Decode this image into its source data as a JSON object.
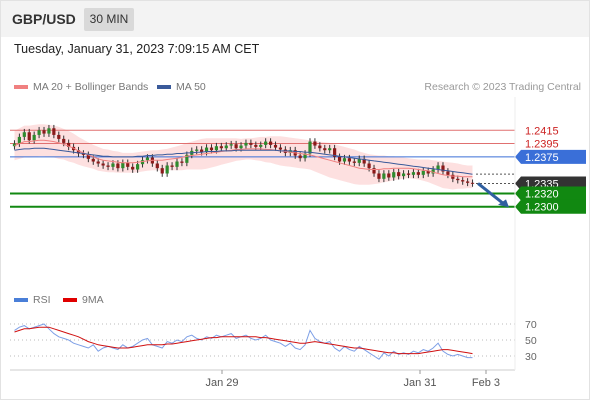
{
  "header": {
    "symbol": "GBP/USD",
    "timeframe": "30 MIN"
  },
  "timestamp": "Tuesday, January 31, 2023 7:09:15 AM CET",
  "legend": {
    "ma20": {
      "label": "MA 20 + Bollinger Bands",
      "color": "#f08080"
    },
    "ma50": {
      "label": "MA 50",
      "color": "#3a5a9a"
    }
  },
  "credit": "Research © 2023 Trading Central",
  "rsi_legend": {
    "rsi": {
      "label": "RSI",
      "color": "#4a7fd8"
    },
    "ma9": {
      "label": "9MA",
      "color": "#e00000"
    }
  },
  "colors": {
    "bull": "#2e8b2e",
    "bear": "#8b1a1a",
    "support": "#118811",
    "pivot": "#3a6fd8",
    "resistance": "#e07070",
    "last": "#333333",
    "band": "#fde0e0",
    "arrow": "#2f5f9f"
  },
  "chart_data": [
    {
      "type": "candlestick",
      "ylim": [
        1.225,
        1.2465
      ],
      "x_ticks": [
        "Jan 29",
        "Jan 31",
        "Feb 3"
      ],
      "levels": [
        {
          "value": "1.2415",
          "kind": "resistance"
        },
        {
          "value": "1.2395",
          "kind": "resistance"
        },
        {
          "value": "1.2375",
          "kind": "pivot"
        },
        {
          "value": "1.2335",
          "kind": "last"
        },
        {
          "value": "1.2320",
          "kind": "support"
        },
        {
          "value": "1.2300",
          "kind": "support"
        }
      ],
      "close": [
        1.2395,
        1.2405,
        1.2412,
        1.24,
        1.2408,
        1.2415,
        1.241,
        1.2418,
        1.2408,
        1.2402,
        1.2396,
        1.239,
        1.2385,
        1.238,
        1.2378,
        1.2372,
        1.2368,
        1.2365,
        1.2362,
        1.236,
        1.2365,
        1.2358,
        1.2366,
        1.236,
        1.2356,
        1.2364,
        1.237,
        1.2374,
        1.2365,
        1.2358,
        1.235,
        1.2362,
        1.236,
        1.2368,
        1.2366,
        1.2378,
        1.2384,
        1.2386,
        1.2382,
        1.2389,
        1.2385,
        1.2391,
        1.2388,
        1.2392,
        1.2394,
        1.2388,
        1.2392,
        1.2396,
        1.2393,
        1.239,
        1.2393,
        1.2398,
        1.2393,
        1.2389,
        1.2386,
        1.2381,
        1.2385,
        1.2377,
        1.2373,
        1.238,
        1.2398,
        1.2392,
        1.2388,
        1.2385,
        1.2388,
        1.2375,
        1.2368,
        1.2373,
        1.2368,
        1.2366,
        1.2372,
        1.2365,
        1.2358,
        1.235,
        1.2342,
        1.235,
        1.2344,
        1.2352,
        1.2346,
        1.235,
        1.2348,
        1.2352,
        1.2348,
        1.2354,
        1.235,
        1.2356,
        1.2362,
        1.2353,
        1.2348,
        1.2342,
        1.234,
        1.2338,
        1.2336,
        1.2335
      ],
      "ma20": [
        1.2392,
        1.2395,
        1.2398,
        1.2398,
        1.2399,
        1.24,
        1.24,
        1.2399,
        1.2398,
        1.2396,
        1.2394,
        1.2391,
        1.2388,
        1.2384,
        1.2381,
        1.2378,
        1.2375,
        1.2372,
        1.237,
        1.2369,
        1.2368,
        1.2367,
        1.2366,
        1.2366,
        1.2366,
        1.2367,
        1.2368,
        1.2369,
        1.237,
        1.237,
        1.237,
        1.2371,
        1.2372,
        1.2373,
        1.2374,
        1.2376,
        1.2377,
        1.2378,
        1.2379,
        1.238,
        1.2381,
        1.2382,
        1.2383,
        1.2384,
        1.2385,
        1.2386,
        1.2386,
        1.2387,
        1.2387,
        1.2387,
        1.2387,
        1.2386,
        1.2386,
        1.2385,
        1.2384,
        1.2383,
        1.2382,
        1.2381,
        1.238,
        1.2379,
        1.2378,
        1.2376,
        1.2374,
        1.2372,
        1.237,
        1.2368,
        1.2366,
        1.2364,
        1.2362,
        1.236,
        1.2358,
        1.2357,
        1.2356,
        1.2356,
        1.2356,
        1.2357,
        1.2357,
        1.2358,
        1.2358,
        1.2358,
        1.2358,
        1.2357,
        1.2356,
        1.2355,
        1.2354,
        1.2352,
        1.235,
        1.2348,
        1.2347,
        1.2346,
        1.2346,
        1.2345,
        1.2345,
        1.2345
      ],
      "ma50": [
        1.2385,
        1.2386,
        1.2387,
        1.2387,
        1.2388,
        1.2388,
        1.2388,
        1.2387,
        1.2386,
        1.2385,
        1.2384,
        1.2383,
        1.2382,
        1.2381,
        1.238,
        1.2379,
        1.2378,
        1.2377,
        1.2376,
        1.2376,
        1.2375,
        1.2375,
        1.2375,
        1.2375,
        1.2375,
        1.2376,
        1.2376,
        1.2377,
        1.2377,
        1.2378,
        1.2378,
        1.2379,
        1.2379,
        1.238,
        1.238,
        1.2381,
        1.2381,
        1.2382,
        1.2382,
        1.2383,
        1.2383,
        1.2383,
        1.2384,
        1.2384,
        1.2384,
        1.2385,
        1.2385,
        1.2385,
        1.2385,
        1.2385,
        1.2385,
        1.2385,
        1.2385,
        1.2385,
        1.2384,
        1.2384,
        1.2384,
        1.2383,
        1.2383,
        1.2382,
        1.2382,
        1.2381,
        1.238,
        1.2379,
        1.2378,
        1.2377,
        1.2376,
        1.2375,
        1.2374,
        1.2373,
        1.2372,
        1.2371,
        1.237,
        1.2369,
        1.2368,
        1.2367,
        1.2366,
        1.2365,
        1.2364,
        1.2363,
        1.2362,
        1.2361,
        1.236,
        1.2359,
        1.2358,
        1.2357,
        1.2356,
        1.2355,
        1.2354,
        1.2353,
        1.2352,
        1.2351,
        1.235,
        1.2349
      ],
      "band_width": [
        0.0022,
        0.0023,
        0.0024,
        0.0024,
        0.0024,
        0.0024,
        0.0024,
        0.0024,
        0.0024,
        0.0024,
        0.0023,
        0.0023,
        0.0022,
        0.0021,
        0.002,
        0.0019,
        0.0018,
        0.0018,
        0.0017,
        0.0017,
        0.0016,
        0.0016,
        0.0015,
        0.0015,
        0.0015,
        0.0015,
        0.0015,
        0.0015,
        0.0015,
        0.0015,
        0.0016,
        0.0016,
        0.0017,
        0.0018,
        0.0019,
        0.002,
        0.0021,
        0.0022,
        0.0023,
        0.0023,
        0.0022,
        0.0021,
        0.002,
        0.0019,
        0.0018,
        0.0017,
        0.0016,
        0.0016,
        0.0016,
        0.0017,
        0.0018,
        0.0019,
        0.002,
        0.0021,
        0.0022,
        0.0022,
        0.0022,
        0.0022,
        0.0022,
        0.0022,
        0.0022,
        0.0023,
        0.0024,
        0.0025,
        0.0026,
        0.0026,
        0.0026,
        0.0026,
        0.0026,
        0.0026,
        0.0025,
        0.0024,
        0.0023,
        0.0022,
        0.0021,
        0.002,
        0.0019,
        0.0018,
        0.0017,
        0.0016,
        0.0015,
        0.0015,
        0.0015,
        0.0016,
        0.0017,
        0.0018,
        0.0019,
        0.002,
        0.002,
        0.002,
        0.0019,
        0.0018,
        0.0017,
        0.0017
      ]
    },
    {
      "type": "line",
      "y_ticks": [
        "70",
        "50",
        "30"
      ],
      "ylim": [
        15,
        85
      ],
      "series": [
        {
          "name": "RSI",
          "values": [
            62,
            66,
            68,
            64,
            66,
            68,
            70,
            64,
            58,
            54,
            52,
            50,
            46,
            44,
            42,
            40,
            44,
            36,
            40,
            42,
            40,
            38,
            44,
            40,
            42,
            46,
            50,
            52,
            44,
            42,
            40,
            48,
            46,
            50,
            48,
            54,
            56,
            52,
            50,
            54,
            52,
            56,
            54,
            56,
            58,
            52,
            54,
            56,
            52,
            50,
            52,
            56,
            50,
            48,
            46,
            42,
            46,
            40,
            38,
            44,
            62,
            52,
            48,
            46,
            48,
            40,
            36,
            42,
            38,
            36,
            42,
            38,
            34,
            30,
            26,
            34,
            30,
            36,
            32,
            34,
            32,
            36,
            34,
            38,
            36,
            40,
            46,
            36,
            32,
            30,
            32,
            30,
            28,
            28
          ]
        },
        {
          "name": "9MA",
          "values": [
            60,
            62,
            64,
            64,
            65,
            66,
            66,
            66,
            64,
            62,
            60,
            58,
            56,
            54,
            51,
            48,
            46,
            44,
            43,
            42,
            41,
            40,
            40,
            40,
            41,
            42,
            43,
            44,
            44,
            44,
            44,
            45,
            45,
            46,
            47,
            48,
            49,
            50,
            51,
            52,
            53,
            53,
            54,
            54,
            54,
            54,
            54,
            54,
            54,
            54,
            53,
            53,
            52,
            51,
            50,
            49,
            48,
            47,
            46,
            46,
            47,
            48,
            47,
            46,
            45,
            44,
            43,
            42,
            41,
            40,
            40,
            39,
            38,
            37,
            36,
            35,
            34,
            34,
            33,
            33,
            33,
            33,
            33,
            34,
            35,
            36,
            37,
            38,
            38,
            37,
            36,
            35,
            34,
            33
          ]
        }
      ]
    }
  ]
}
